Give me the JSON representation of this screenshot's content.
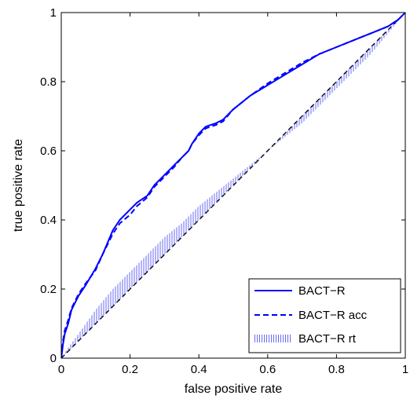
{
  "chart_data": {
    "type": "line",
    "title": "",
    "xlabel": "false positive rate",
    "ylabel": "true positive rate",
    "xlim": [
      0,
      1
    ],
    "ylim": [
      0,
      1
    ],
    "xticks": [
      "0",
      "0.2",
      "0.4",
      "0.6",
      "0.8",
      "1"
    ],
    "yticks": [
      "0",
      "0.2",
      "0.4",
      "0.6",
      "0.8",
      "1"
    ],
    "grid": false,
    "legend_position": "bottom-right",
    "reference_line": {
      "style": "dashed",
      "color": "#000000",
      "x": [
        0,
        1
      ],
      "y": [
        0,
        1
      ]
    },
    "series": [
      {
        "name": "BACT−R",
        "style": "solid",
        "color": "#0000ff",
        "x": [
          0,
          0.005,
          0.01,
          0.02,
          0.03,
          0.05,
          0.07,
          0.1,
          0.12,
          0.15,
          0.17,
          0.2,
          0.22,
          0.25,
          0.27,
          0.3,
          0.33,
          0.35,
          0.37,
          0.38,
          0.4,
          0.42,
          0.45,
          0.47,
          0.5,
          0.55,
          0.6,
          0.65,
          0.7,
          0.75,
          0.8,
          0.85,
          0.9,
          0.95,
          0.98,
          1
        ],
        "y": [
          0,
          0.04,
          0.07,
          0.1,
          0.14,
          0.18,
          0.21,
          0.26,
          0.3,
          0.37,
          0.4,
          0.43,
          0.45,
          0.47,
          0.5,
          0.53,
          0.56,
          0.58,
          0.6,
          0.62,
          0.65,
          0.67,
          0.68,
          0.69,
          0.72,
          0.76,
          0.79,
          0.82,
          0.85,
          0.88,
          0.9,
          0.92,
          0.94,
          0.96,
          0.98,
          1
        ]
      },
      {
        "name": "BACT−R acc",
        "style": "dashed",
        "color": "#0000ff",
        "x": [
          0,
          0.005,
          0.01,
          0.02,
          0.03,
          0.05,
          0.07,
          0.1,
          0.12,
          0.15,
          0.17,
          0.2,
          0.22,
          0.25,
          0.27,
          0.3,
          0.33,
          0.35,
          0.37,
          0.38,
          0.4,
          0.42,
          0.45,
          0.47,
          0.5,
          0.55,
          0.6,
          0.65,
          0.7,
          0.75,
          0.8,
          0.85,
          0.9,
          0.95,
          0.98,
          1
        ],
        "y": [
          0,
          0.05,
          0.08,
          0.11,
          0.145,
          0.185,
          0.215,
          0.255,
          0.3,
          0.36,
          0.39,
          0.415,
          0.44,
          0.465,
          0.495,
          0.525,
          0.555,
          0.58,
          0.6,
          0.62,
          0.645,
          0.665,
          0.675,
          0.685,
          0.72,
          0.76,
          0.795,
          0.825,
          0.855,
          0.88,
          0.9,
          0.92,
          0.94,
          0.96,
          0.98,
          1
        ]
      },
      {
        "name": "BACT−R rt",
        "style": "hatched",
        "color": "#0000ff",
        "x": [
          0,
          0.02,
          0.05,
          0.1,
          0.15,
          0.2,
          0.25,
          0.3,
          0.35,
          0.4,
          0.45,
          0.5,
          0.55,
          0.6,
          0.65,
          0.7,
          0.75,
          0.8,
          0.85,
          0.9,
          0.95,
          1
        ],
        "y": [
          0,
          0.03,
          0.07,
          0.14,
          0.2,
          0.25,
          0.3,
          0.35,
          0.39,
          0.44,
          0.48,
          0.52,
          0.56,
          0.6,
          0.64,
          0.68,
          0.73,
          0.78,
          0.83,
          0.88,
          0.94,
          1
        ]
      }
    ]
  }
}
